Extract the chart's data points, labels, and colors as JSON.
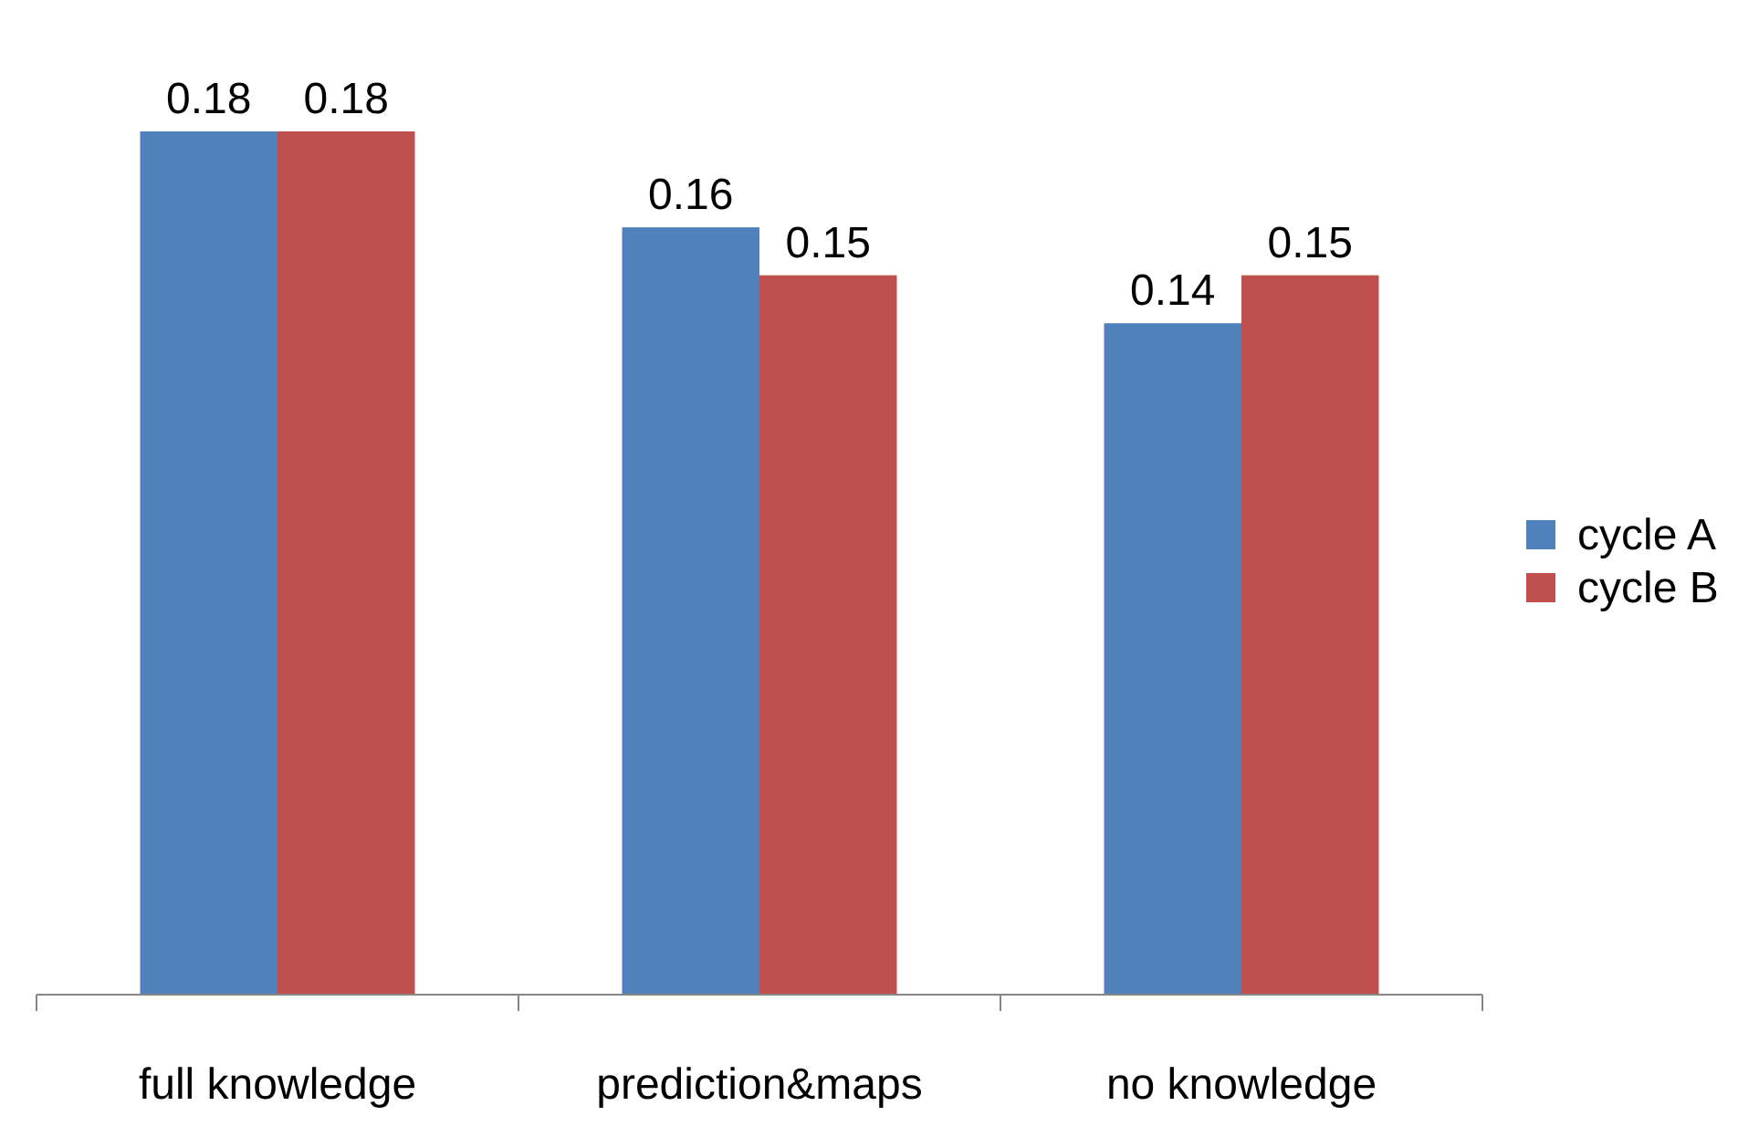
{
  "chart_data": {
    "type": "bar",
    "categories": [
      "full knowledge",
      "prediction&maps",
      "no knowledge"
    ],
    "series": [
      {
        "name": "cycle A",
        "color": "#4f81bd",
        "values": [
          0.18,
          0.16,
          0.14
        ]
      },
      {
        "name": "cycle B",
        "color": "#c0504d",
        "values": [
          0.18,
          0.15,
          0.15
        ]
      }
    ],
    "tick_labels": "x",
    "data_labels": true,
    "legend": "right"
  }
}
